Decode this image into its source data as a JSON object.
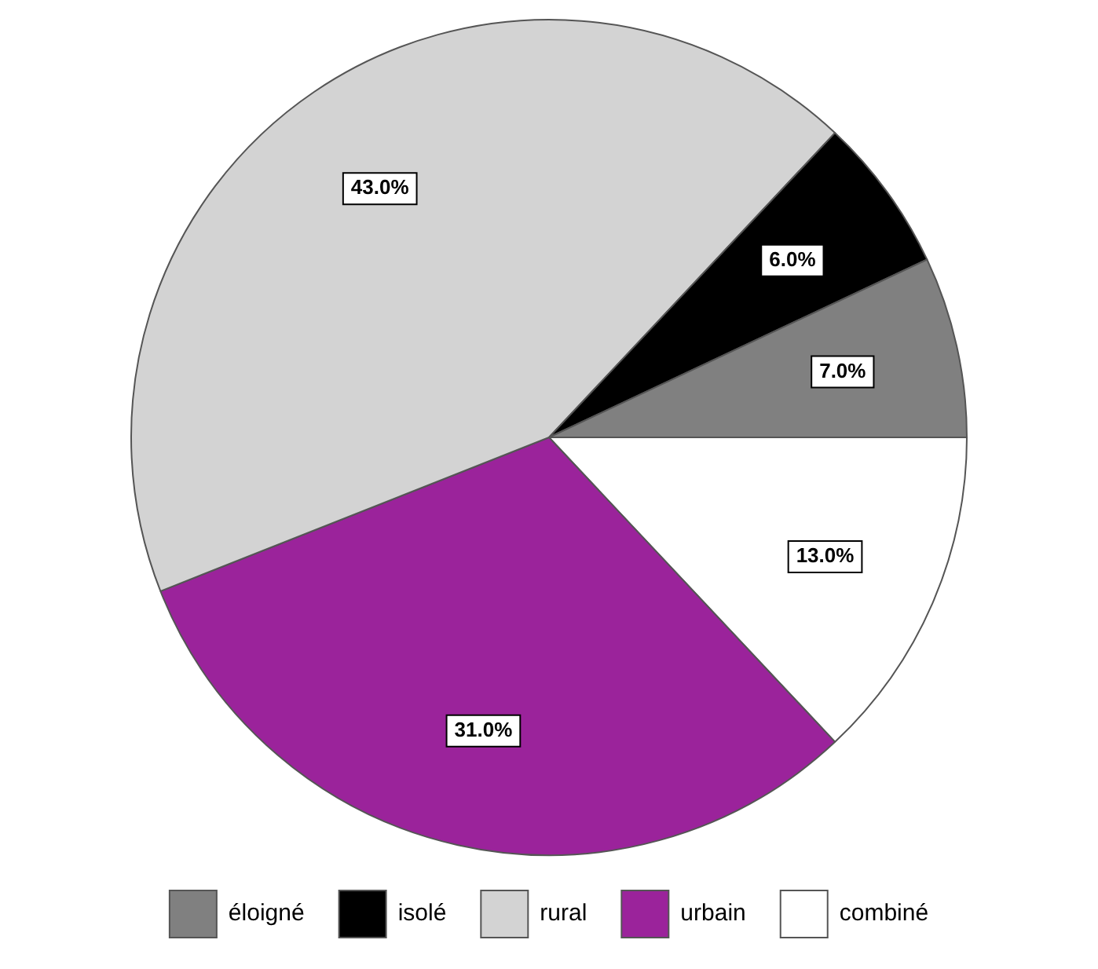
{
  "chart_data": {
    "type": "pie",
    "categories": [
      "éloigné",
      "isolé",
      "rural",
      "urbain",
      "combiné"
    ],
    "values": [
      7,
      6,
      43,
      31,
      13
    ],
    "colors": [
      "#808080",
      "#000000",
      "#d3d3d3",
      "#9b239b",
      "#ffffff"
    ],
    "value_labels": [
      "7.0%",
      "6.0%",
      "43.0%",
      "31.0%",
      "13.0%"
    ],
    "legend": "bottom"
  }
}
